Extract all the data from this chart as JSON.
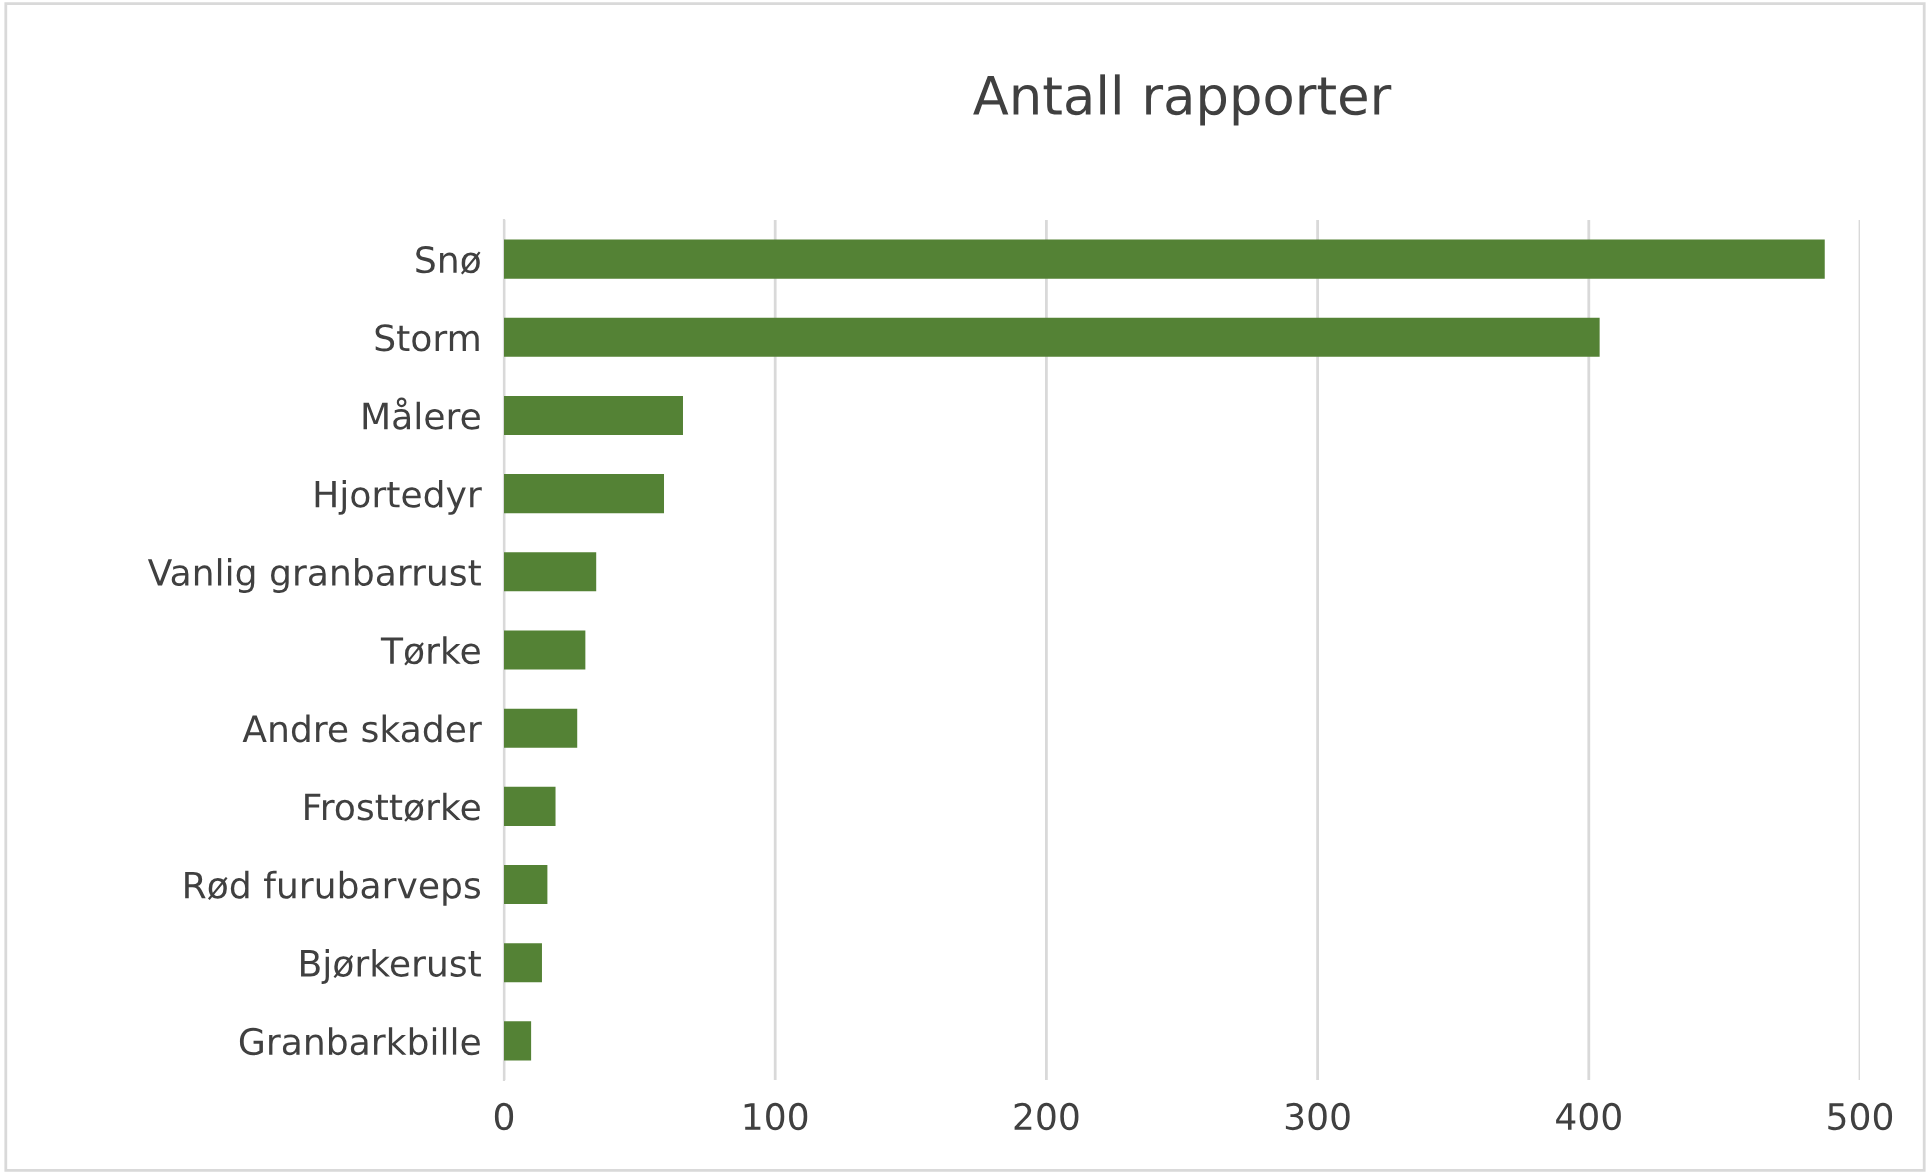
{
  "chart_data": {
    "type": "bar",
    "orientation": "horizontal",
    "title": "Antall rapporter",
    "categories": [
      "Snø",
      "Storm",
      "Målere",
      "Hjortedyr",
      "Vanlig granbarrust",
      "Tørke",
      "Andre skader",
      "Frosttørke",
      "Rød furubarveps",
      "Bjørkerust",
      "Granbarkbille"
    ],
    "values": [
      487,
      404,
      66,
      59,
      34,
      30,
      27,
      19,
      16,
      14,
      10
    ],
    "color": "#548235",
    "xlim": [
      0,
      500
    ],
    "xticks": [
      0,
      100,
      200,
      300,
      400,
      500
    ],
    "grid": "x",
    "legend": false
  }
}
